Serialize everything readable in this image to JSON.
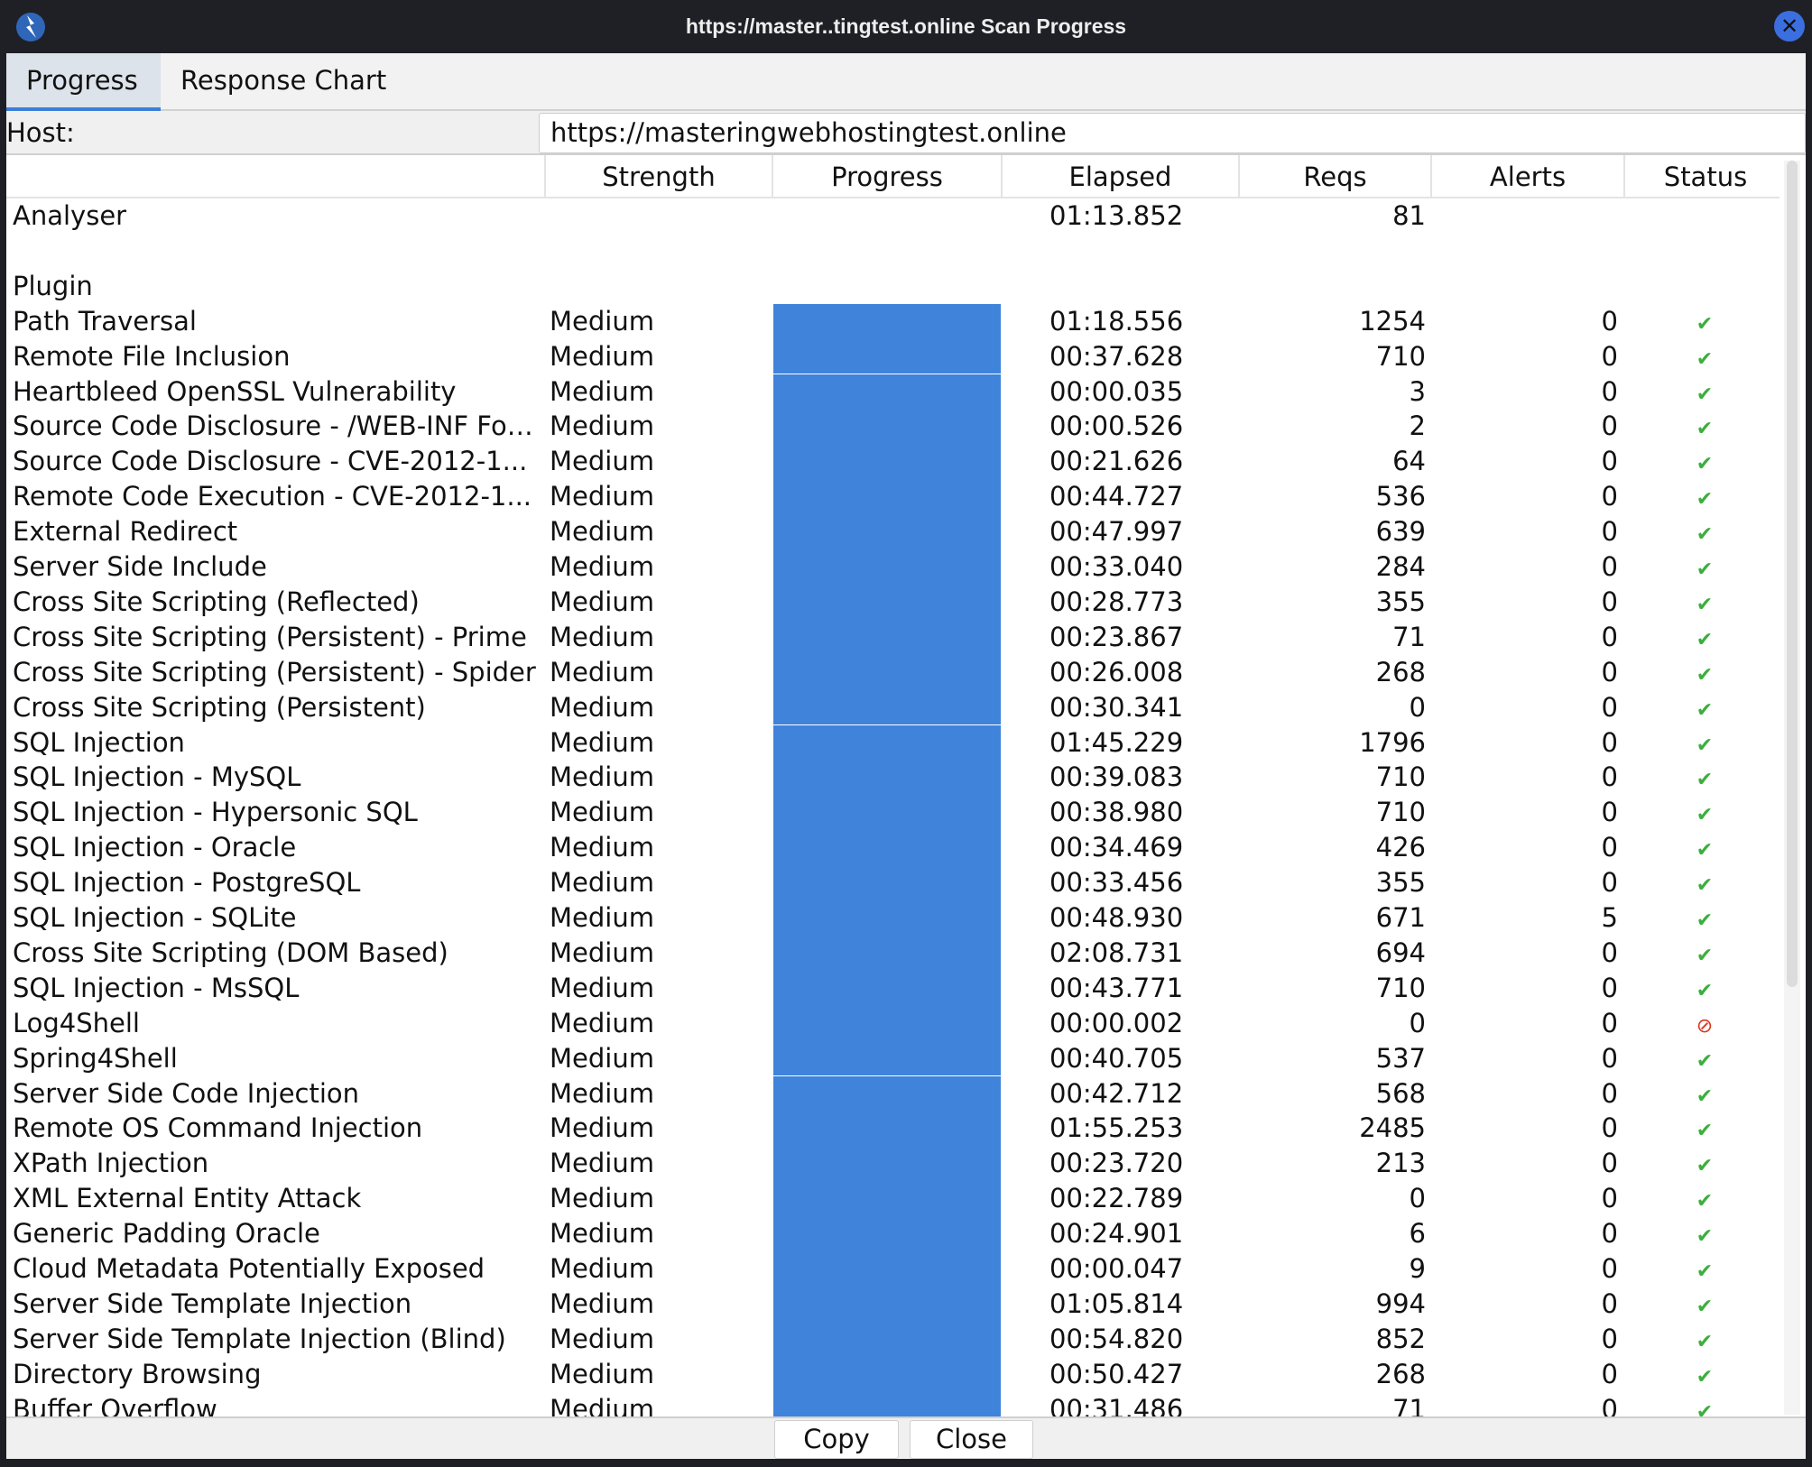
{
  "window": {
    "title": "https://master..tingtest.online Scan Progress",
    "close_glyph": "✕"
  },
  "tabs": [
    {
      "label": "Progress",
      "active": true
    },
    {
      "label": "Response Chart",
      "active": false
    }
  ],
  "host": {
    "label": "Host:",
    "value": "https://masteringwebhostingtest.online"
  },
  "columns": [
    "",
    "Strength",
    "Progress",
    "Elapsed",
    "Reqs",
    "Alerts",
    "Status"
  ],
  "analyser": {
    "name": "Analyser",
    "elapsed": "01:13.852",
    "reqs": "81"
  },
  "plugin_header": "Plugin",
  "status_icons": {
    "complete": "check-icon",
    "skipped": "prohibited-icon"
  },
  "colors": {
    "progress": "#3f83da",
    "ok": "#3cae3c",
    "error": "#e0321e"
  },
  "plugins": [
    {
      "name": "Path Traversal",
      "strength": "Medium",
      "progress": 100,
      "elapsed": "01:18.556",
      "reqs": "1254",
      "alerts": "0",
      "status": "complete"
    },
    {
      "name": "Remote File Inclusion",
      "strength": "Medium",
      "progress": 100,
      "elapsed": "00:37.628",
      "reqs": "710",
      "alerts": "0",
      "status": "complete"
    },
    {
      "name": "Heartbleed OpenSSL Vulnerability",
      "strength": "Medium",
      "progress": 100,
      "elapsed": "00:00.035",
      "reqs": "3",
      "alerts": "0",
      "status": "complete"
    },
    {
      "name": "Source Code Disclosure - /WEB-INF Fol...",
      "strength": "Medium",
      "progress": 100,
      "elapsed": "00:00.526",
      "reqs": "2",
      "alerts": "0",
      "status": "complete"
    },
    {
      "name": "Source Code Disclosure - CVE-2012-1...",
      "strength": "Medium",
      "progress": 100,
      "elapsed": "00:21.626",
      "reqs": "64",
      "alerts": "0",
      "status": "complete"
    },
    {
      "name": "Remote Code Execution - CVE-2012-1...",
      "strength": "Medium",
      "progress": 100,
      "elapsed": "00:44.727",
      "reqs": "536",
      "alerts": "0",
      "status": "complete"
    },
    {
      "name": "External Redirect",
      "strength": "Medium",
      "progress": 100,
      "elapsed": "00:47.997",
      "reqs": "639",
      "alerts": "0",
      "status": "complete"
    },
    {
      "name": "Server Side Include",
      "strength": "Medium",
      "progress": 100,
      "elapsed": "00:33.040",
      "reqs": "284",
      "alerts": "0",
      "status": "complete"
    },
    {
      "name": "Cross Site Scripting (Reflected)",
      "strength": "Medium",
      "progress": 100,
      "elapsed": "00:28.773",
      "reqs": "355",
      "alerts": "0",
      "status": "complete"
    },
    {
      "name": "Cross Site Scripting (Persistent) - Prime",
      "strength": "Medium",
      "progress": 100,
      "elapsed": "00:23.867",
      "reqs": "71",
      "alerts": "0",
      "status": "complete"
    },
    {
      "name": "Cross Site Scripting (Persistent) - Spider",
      "strength": "Medium",
      "progress": 100,
      "elapsed": "00:26.008",
      "reqs": "268",
      "alerts": "0",
      "status": "complete"
    },
    {
      "name": "Cross Site Scripting (Persistent)",
      "strength": "Medium",
      "progress": 100,
      "elapsed": "00:30.341",
      "reqs": "0",
      "alerts": "0",
      "status": "complete"
    },
    {
      "name": "SQL Injection",
      "strength": "Medium",
      "progress": 100,
      "elapsed": "01:45.229",
      "reqs": "1796",
      "alerts": "0",
      "status": "complete"
    },
    {
      "name": "SQL Injection - MySQL",
      "strength": "Medium",
      "progress": 100,
      "elapsed": "00:39.083",
      "reqs": "710",
      "alerts": "0",
      "status": "complete"
    },
    {
      "name": "SQL Injection - Hypersonic SQL",
      "strength": "Medium",
      "progress": 100,
      "elapsed": "00:38.980",
      "reqs": "710",
      "alerts": "0",
      "status": "complete"
    },
    {
      "name": "SQL Injection - Oracle",
      "strength": "Medium",
      "progress": 100,
      "elapsed": "00:34.469",
      "reqs": "426",
      "alerts": "0",
      "status": "complete"
    },
    {
      "name": "SQL Injection - PostgreSQL",
      "strength": "Medium",
      "progress": 100,
      "elapsed": "00:33.456",
      "reqs": "355",
      "alerts": "0",
      "status": "complete"
    },
    {
      "name": "SQL Injection - SQLite",
      "strength": "Medium",
      "progress": 100,
      "elapsed": "00:48.930",
      "reqs": "671",
      "alerts": "5",
      "status": "complete"
    },
    {
      "name": "Cross Site Scripting (DOM Based)",
      "strength": "Medium",
      "progress": 100,
      "elapsed": "02:08.731",
      "reqs": "694",
      "alerts": "0",
      "status": "complete"
    },
    {
      "name": "SQL Injection - MsSQL",
      "strength": "Medium",
      "progress": 100,
      "elapsed": "00:43.771",
      "reqs": "710",
      "alerts": "0",
      "status": "complete"
    },
    {
      "name": "Log4Shell",
      "strength": "Medium",
      "progress": 100,
      "elapsed": "00:00.002",
      "reqs": "0",
      "alerts": "0",
      "status": "skipped"
    },
    {
      "name": "Spring4Shell",
      "strength": "Medium",
      "progress": 100,
      "elapsed": "00:40.705",
      "reqs": "537",
      "alerts": "0",
      "status": "complete"
    },
    {
      "name": "Server Side Code Injection",
      "strength": "Medium",
      "progress": 100,
      "elapsed": "00:42.712",
      "reqs": "568",
      "alerts": "0",
      "status": "complete"
    },
    {
      "name": "Remote OS Command Injection",
      "strength": "Medium",
      "progress": 100,
      "elapsed": "01:55.253",
      "reqs": "2485",
      "alerts": "0",
      "status": "complete"
    },
    {
      "name": "XPath Injection",
      "strength": "Medium",
      "progress": 100,
      "elapsed": "00:23.720",
      "reqs": "213",
      "alerts": "0",
      "status": "complete"
    },
    {
      "name": "XML External Entity Attack",
      "strength": "Medium",
      "progress": 100,
      "elapsed": "00:22.789",
      "reqs": "0",
      "alerts": "0",
      "status": "complete"
    },
    {
      "name": "Generic Padding Oracle",
      "strength": "Medium",
      "progress": 100,
      "elapsed": "00:24.901",
      "reqs": "6",
      "alerts": "0",
      "status": "complete"
    },
    {
      "name": "Cloud Metadata Potentially Exposed",
      "strength": "Medium",
      "progress": 100,
      "elapsed": "00:00.047",
      "reqs": "9",
      "alerts": "0",
      "status": "complete"
    },
    {
      "name": "Server Side Template Injection",
      "strength": "Medium",
      "progress": 100,
      "elapsed": "01:05.814",
      "reqs": "994",
      "alerts": "0",
      "status": "complete"
    },
    {
      "name": "Server Side Template Injection (Blind)",
      "strength": "Medium",
      "progress": 100,
      "elapsed": "00:54.820",
      "reqs": "852",
      "alerts": "0",
      "status": "complete"
    },
    {
      "name": "Directory Browsing",
      "strength": "Medium",
      "progress": 100,
      "elapsed": "00:50.427",
      "reqs": "268",
      "alerts": "0",
      "status": "complete"
    },
    {
      "name": "Buffer Overflow",
      "strength": "Medium",
      "progress": 100,
      "elapsed": "00:31.486",
      "reqs": "71",
      "alerts": "0",
      "status": "complete"
    }
  ],
  "buttons": {
    "copy": "Copy",
    "close": "Close"
  }
}
